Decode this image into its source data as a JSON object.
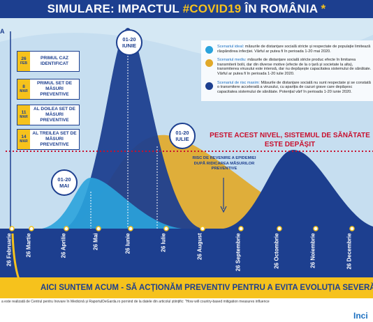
{
  "header": {
    "title_prefix": "SIMULARE: IMPACTUL ",
    "title_hashtag": "#COVID19",
    "title_suffix": " ÎN ROMÂNIA ",
    "asterisk": "*"
  },
  "edge_letter": "A",
  "timeline": [
    {
      "day": "26",
      "month": "FEB",
      "text": "PRIMUL CAZ IDENTIFICAT"
    },
    {
      "day": "8",
      "month": "MAR",
      "text": "PRIMUL SET DE MĂSURI PREVENTIVE"
    },
    {
      "day": "11",
      "month": "MAR",
      "text": "AL DOILEA SET DE MĂSURI PREVENTIVE"
    },
    {
      "day": "14",
      "month": "MAR",
      "text": "AL TREILEA SET DE MĂSURI PREVENTIVE"
    }
  ],
  "peaks": [
    {
      "range": "01-20",
      "month": "IUNIE"
    },
    {
      "range": "01-20",
      "month": "IULIE"
    },
    {
      "range": "01-20",
      "month": "MAI"
    }
  ],
  "legend": [
    {
      "head": "Scenariul ideal:",
      "text": " măsurile de distanțare socială stricte și respectate de populație limitează răspândirea infecției. Vârful ar putea fi în perioada 1-20 mai 2020."
    },
    {
      "head": "Scenariul mediu:",
      "text": " măsurile de distanțare socială stricte produc efecte în limitarea transmiterii bolii, dar din diverse motive (efecte de la o țară și societate la alta), transmiterea virusului este intensă, dar nu depășește capacitatea sistemului de sănătate. Vârful ar putea fi în perioada 1-20 iulie 2020."
    },
    {
      "head": "Scenariul de risc maxim:",
      "text": " Măsurile de distanțare socială nu sunt respectate și se constată o transmitere accelerată a virusului, cu apariția de cazuri grave care depășesc capacitatea sistemului de sănătate. Potențial vârf în perioada 1-20 iunie 2020."
    }
  ],
  "annotations": {
    "capacity": "PESTE ACEST NIVEL, SISTEMUL DE SĂNĂTATE ESTE DEPĂȘIT",
    "risk": "RISC DE REVENIRE A EPIDEMIEI DUPĂ RIDICAREA MĂSURILOR PREVENTIVE"
  },
  "x_labels": [
    "26 Februarie",
    "26 Martie",
    "26 Aprilie",
    "26 Mai",
    "26 Iunie",
    "26 Iulie",
    "26 August",
    "26 Septembrie",
    "26 Octombrie",
    "26 Noiembrie",
    "26 Decembrie"
  ],
  "banner": "AICI SUNTEM ACUM - SĂ ACȚIONĂM PREVENTIV PENTRU A EVITA EVOLUȚIA SEVERĂ A EPIDEMI",
  "footer": {
    "text": "a este realizată de Centrul pentru Inovare în Medicină și RaportulDeGarda.ro pornind de la datele din articolul științific: \"How will country-based mitigation measures influence",
    "logo": "Inci"
  }
}
